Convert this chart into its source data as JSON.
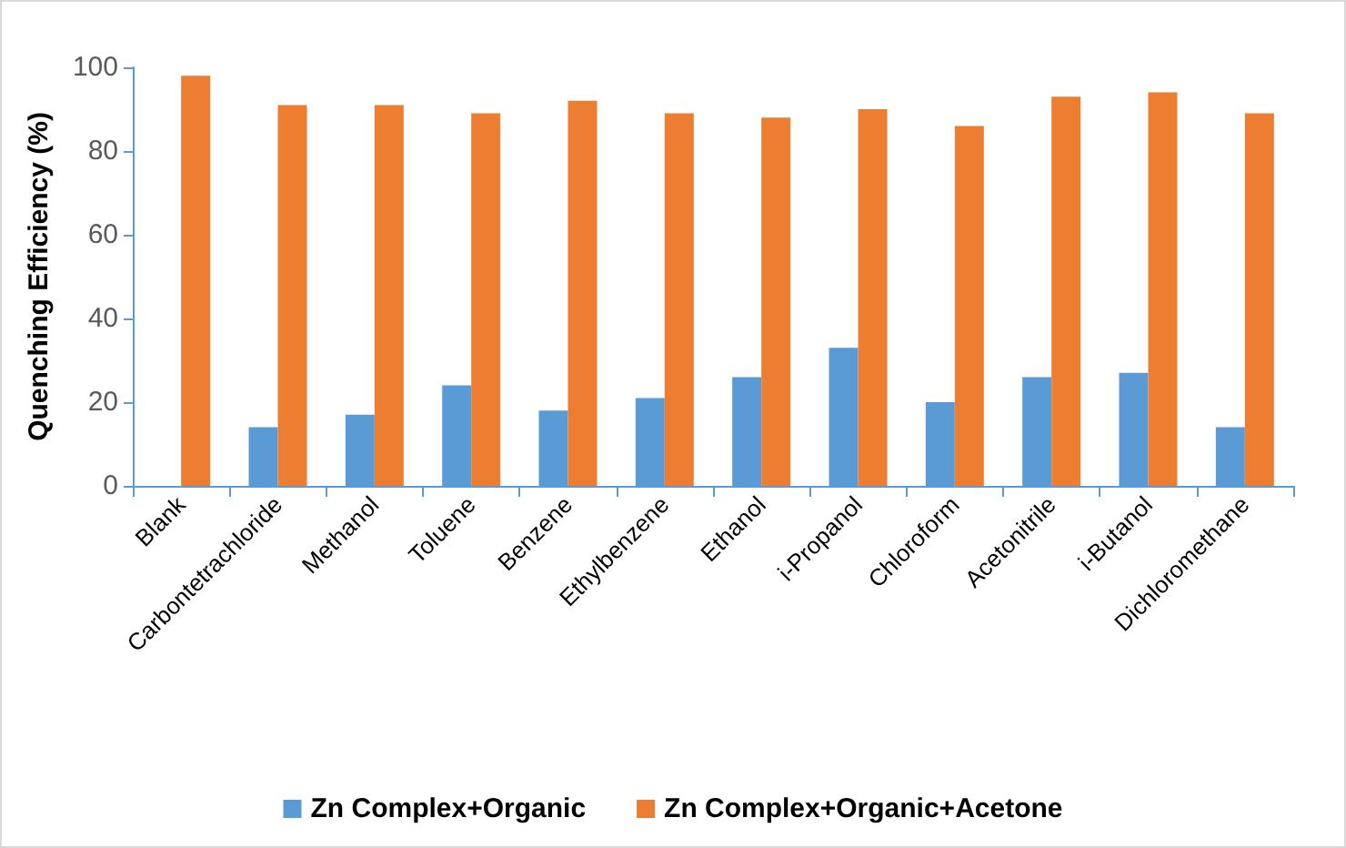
{
  "chart_data": {
    "type": "bar",
    "ylabel": "Quenching Efficiency (%)",
    "categories": [
      "Blank",
      "Carbontetrachloride",
      "Methanol",
      "Toluene",
      "Benzene",
      "Ethylbenzene",
      "Ethanol",
      "i-Propanol",
      "Chloroform",
      "Acetonitrile",
      "i-Butanol",
      "Dichloromethane"
    ],
    "series": [
      {
        "name": "Zn Complex+Organic",
        "color": "#5b9bd5",
        "values": [
          null,
          14,
          17,
          24,
          18,
          21,
          26,
          33,
          20,
          26,
          27,
          14
        ]
      },
      {
        "name": "Zn Complex+Organic+Acetone",
        "color": "#ed7d31",
        "values": [
          98,
          91,
          91,
          89,
          92,
          89,
          88,
          90,
          86,
          93,
          94,
          89
        ]
      }
    ],
    "ylim": [
      0,
      100
    ],
    "yticks": [
      0,
      20,
      40,
      60,
      80,
      100
    ],
    "grid": false,
    "legend": "bottom"
  }
}
